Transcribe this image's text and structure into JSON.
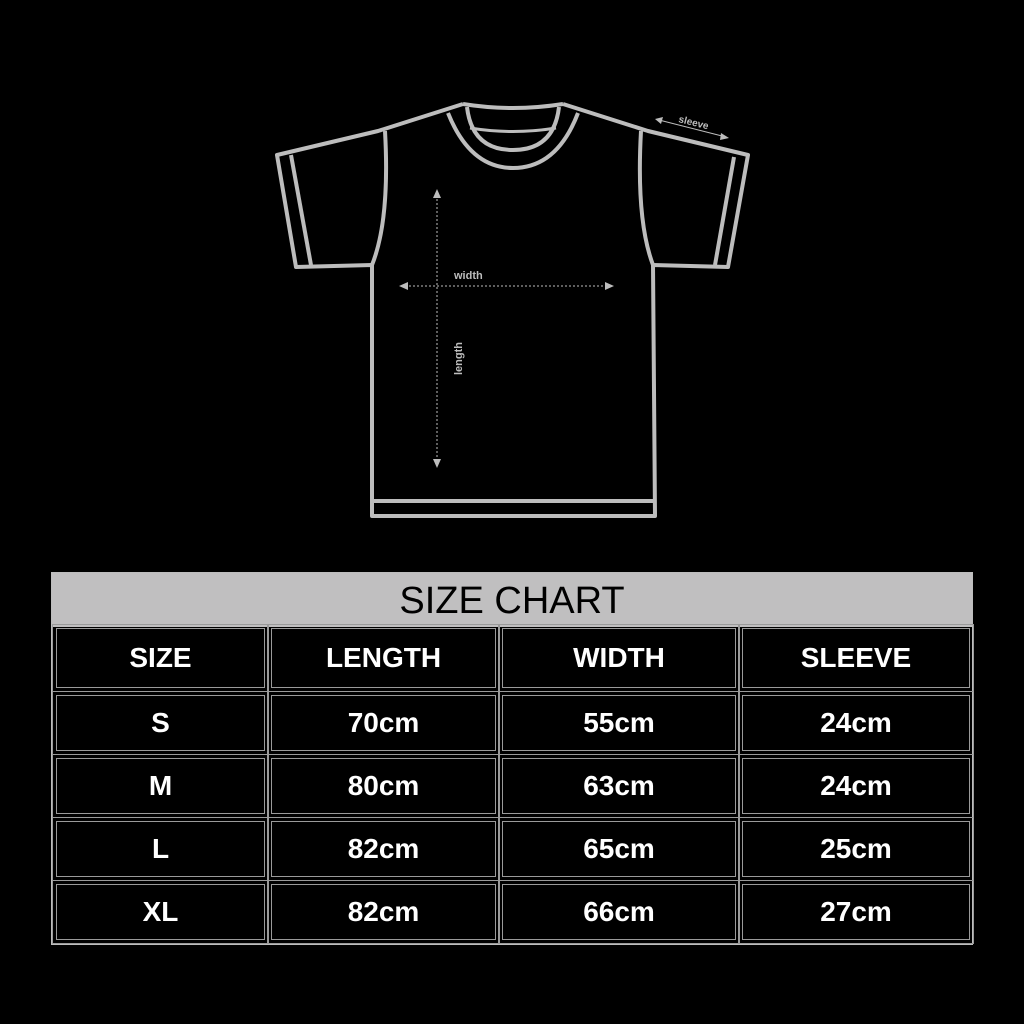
{
  "diagram": {
    "labels": {
      "width": "width",
      "length": "length",
      "sleeve": "sleeve"
    },
    "line_color": "#bdbdbd"
  },
  "table": {
    "title": "SIZE CHART",
    "headers": [
      "SIZE",
      "LENGTH",
      "WIDTH",
      "SLEEVE"
    ],
    "rows": [
      [
        "S",
        "70cm",
        "55cm",
        "24cm"
      ],
      [
        "M",
        "80cm",
        "63cm",
        "24cm"
      ],
      [
        "L",
        "82cm",
        "65cm",
        "25cm"
      ],
      [
        "XL",
        "82cm",
        "66cm",
        "27cm"
      ]
    ],
    "title_bg": "#c0bfc0"
  }
}
